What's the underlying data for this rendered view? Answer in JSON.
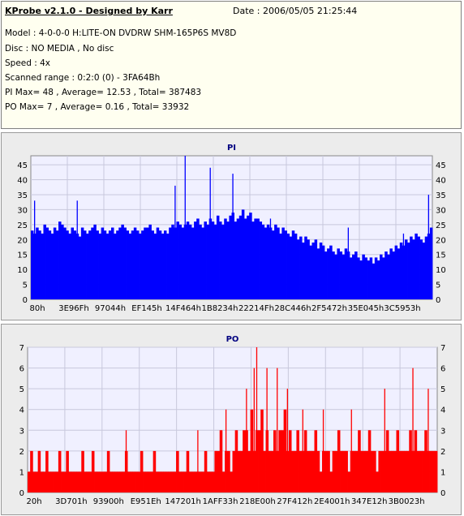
{
  "header": {
    "app_title": "KProbe v2.1.0 - Designed by Karr",
    "date": "Date : 2006/05/05 21:25:44",
    "model": "Model : 4-0-0-0 H:LITE-ON DVDRW SHM-165P6S MV8D",
    "disc": "Disc : NO MEDIA , No disc",
    "speed": "Speed : 4x",
    "scanned_range": "Scanned range : 0:2:0 (0) - 3FA64Bh",
    "pi_stats": "PI Max= 48 , Average= 12.53 , Total= 387483",
    "po_stats": "PO Max= 7 , Average= 0.16 , Total= 33932"
  },
  "colors": {
    "pi_bars": "#0000ff",
    "po_bars": "#ff0000",
    "plot_bg": "#f0f0ff",
    "panel_bg": "#ececec",
    "info_bg": "#fffff0"
  },
  "chart_data": [
    {
      "type": "bar",
      "title": "PI",
      "xlabel": "",
      "ylabel": "",
      "ylim": [
        0,
        48
      ],
      "y_ticks": [
        "0",
        "5",
        "10",
        "15",
        "20",
        "25",
        "30",
        "35",
        "40",
        "45"
      ],
      "x_ticks": [
        "80h",
        "3E96Fh",
        "97044h",
        "EF145h",
        "14F464h",
        "1B8234h",
        "22214Fh",
        "28C446h",
        "2F5472h",
        "35E045h",
        "3C5953h"
      ],
      "grid": true,
      "series": [
        {
          "values": [
            23,
            22,
            24,
            23,
            22,
            25,
            24,
            23,
            22,
            24,
            23,
            26,
            25,
            24,
            23,
            22,
            24,
            23,
            22,
            21,
            24,
            23,
            22,
            23,
            24,
            25,
            23,
            22,
            24,
            23,
            22,
            23,
            24,
            22,
            23,
            24,
            25,
            24,
            23,
            22,
            23,
            24,
            23,
            22,
            23,
            24,
            24,
            25,
            23,
            22,
            24,
            23,
            22,
            23,
            22,
            24,
            25,
            24,
            26,
            25,
            24,
            25,
            26,
            25,
            24,
            26,
            27,
            25,
            24,
            26,
            25,
            27,
            26,
            25,
            28,
            26,
            25,
            27,
            26,
            28,
            29,
            26,
            27,
            28,
            30,
            27,
            28,
            29,
            26,
            27,
            27,
            26,
            25,
            24,
            25,
            24,
            23,
            25,
            24,
            22,
            24,
            23,
            22,
            21,
            23,
            22,
            20,
            21,
            19,
            21,
            20,
            18,
            19,
            20,
            17,
            19,
            18,
            16,
            17,
            18,
            16,
            15,
            17,
            16,
            15,
            17,
            16,
            14,
            15,
            16,
            14,
            13,
            15,
            14,
            13,
            14,
            12,
            14,
            13,
            15,
            14,
            16,
            15,
            17,
            16,
            18,
            17,
            19,
            18,
            20,
            19,
            21,
            20,
            22,
            21,
            20,
            19,
            21,
            22,
            24
          ],
          "peaks": [
            [
              61,
              48
            ],
            [
              1,
              33
            ],
            [
              18,
              33
            ],
            [
              57,
              38
            ],
            [
              71,
              44
            ],
            [
              80,
              42
            ],
            [
              95,
              27
            ],
            [
              126,
              24
            ],
            [
              148,
              22
            ],
            [
              158,
              35
            ]
          ]
        }
      ]
    },
    {
      "type": "bar",
      "title": "PO",
      "xlabel": "",
      "ylabel": "",
      "ylim": [
        0,
        7
      ],
      "y_ticks": [
        "0",
        "1",
        "2",
        "3",
        "4",
        "5",
        "6",
        "7"
      ],
      "x_ticks": [
        "20h",
        "3D701h",
        "93900h",
        "E951Eh",
        "147201h",
        "1AFF33h",
        "218E00h",
        "27F412h",
        "2E4001h",
        "347E12h",
        "3B0023h"
      ],
      "grid": true,
      "series": [
        {
          "values": [
            1,
            2,
            1,
            1,
            2,
            1,
            1,
            2,
            1,
            1,
            1,
            1,
            2,
            1,
            1,
            2,
            1,
            1,
            1,
            1,
            1,
            2,
            1,
            1,
            1,
            2,
            1,
            1,
            1,
            1,
            1,
            2,
            1,
            1,
            1,
            1,
            1,
            1,
            2,
            1,
            1,
            1,
            1,
            1,
            2,
            1,
            1,
            1,
            1,
            2,
            1,
            1,
            1,
            1,
            1,
            1,
            1,
            1,
            2,
            1,
            1,
            1,
            2,
            1,
            1,
            1,
            1,
            1,
            1,
            2,
            1,
            1,
            1,
            2,
            2,
            3,
            1,
            2,
            2,
            1,
            2,
            3,
            2,
            2,
            3,
            3,
            2,
            4,
            2,
            3,
            3,
            4,
            2,
            3,
            2,
            2,
            3,
            2,
            3,
            3,
            4,
            2,
            3,
            2,
            2,
            3,
            2,
            2,
            3,
            2,
            2,
            2,
            3,
            2,
            1,
            2,
            2,
            2,
            1,
            2,
            2,
            3,
            2,
            2,
            2,
            1,
            2,
            2,
            2,
            3,
            2,
            2,
            2,
            3,
            2,
            2,
            1,
            2,
            2,
            2,
            3,
            2,
            2,
            2,
            3,
            2,
            2,
            2,
            2,
            3,
            2,
            3,
            2,
            2,
            2,
            3,
            2,
            2,
            2,
            2
          ],
          "peaks": [
            [
              4,
              2
            ],
            [
              21,
              2
            ],
            [
              38,
              3
            ],
            [
              66,
              3
            ],
            [
              73,
              2
            ],
            [
              77,
              4
            ],
            [
              85,
              5
            ],
            [
              88,
              6
            ],
            [
              89,
              7
            ],
            [
              93,
              6
            ],
            [
              97,
              6
            ],
            [
              101,
              5
            ],
            [
              107,
              4
            ],
            [
              115,
              4
            ],
            [
              126,
              4
            ],
            [
              139,
              5
            ],
            [
              150,
              6
            ],
            [
              156,
              5
            ]
          ]
        }
      ]
    }
  ]
}
